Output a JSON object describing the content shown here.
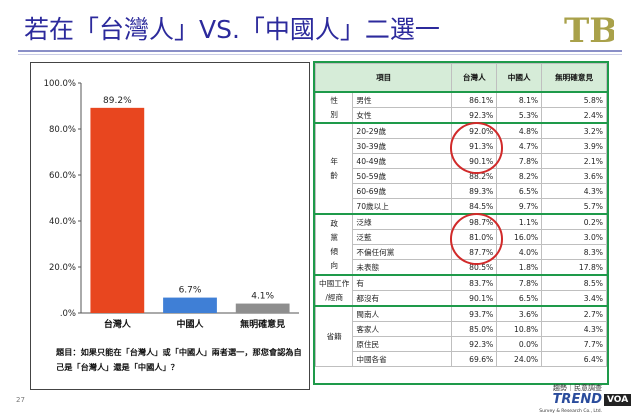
{
  "page": {
    "title": "若在「台灣人」VS.「中國人」二選一",
    "page_number": "27",
    "voa_badge": "VOA"
  },
  "logo": {
    "text": "TBT"
  },
  "question": "題目：如果只能在「台灣人」或「中國人」兩者選一，那您會認為自己是「台灣人」還是「中國人」？",
  "chart_data": {
    "type": "bar",
    "categories": [
      "台灣人",
      "中國人",
      "無明確意見"
    ],
    "values": [
      89.2,
      6.7,
      4.1
    ],
    "value_labels": [
      "89.2%",
      "6.7%",
      "4.1%"
    ],
    "colors": [
      "#e8461f",
      "#3f7fd6",
      "#8e8e8e"
    ],
    "ylim": [
      0,
      100
    ],
    "yticks": [
      0,
      20,
      40,
      60,
      80,
      100
    ],
    "ytick_labels": [
      ".0%",
      "20.0%",
      "40.0%",
      "60.0%",
      "80.0%",
      "100.0%"
    ],
    "title": "",
    "xlabel": "",
    "ylabel": ""
  },
  "table": {
    "headers": [
      "項目",
      "台灣人",
      "中國人",
      "無明確意見"
    ],
    "groups": [
      {
        "label": [
          "性",
          "別"
        ],
        "rows": [
          {
            "sub": "男性",
            "v": [
              "86.1%",
              "8.1%",
              "5.8%"
            ]
          },
          {
            "sub": "女性",
            "v": [
              "92.3%",
              "5.3%",
              "2.4%"
            ]
          }
        ]
      },
      {
        "label": [
          "年",
          "齡"
        ],
        "rows": [
          {
            "sub": "20-29歲",
            "v": [
              "92.0%",
              "4.8%",
              "3.2%"
            ]
          },
          {
            "sub": "30-39歲",
            "v": [
              "91.3%",
              "4.7%",
              "3.9%"
            ]
          },
          {
            "sub": "40-49歲",
            "v": [
              "90.1%",
              "7.8%",
              "2.1%"
            ]
          },
          {
            "sub": "50-59歲",
            "v": [
              "88.2%",
              "8.2%",
              "3.6%"
            ]
          },
          {
            "sub": "60-69歲",
            "v": [
              "89.3%",
              "6.5%",
              "4.3%"
            ]
          },
          {
            "sub": "70歲以上",
            "v": [
              "84.5%",
              "9.7%",
              "5.7%"
            ]
          }
        ]
      },
      {
        "label": [
          "政",
          "黨",
          "傾",
          "向"
        ],
        "rows": [
          {
            "sub": "泛綠",
            "v": [
              "98.7%",
              "1.1%",
              "0.2%"
            ]
          },
          {
            "sub": "泛藍",
            "v": [
              "81.0%",
              "16.0%",
              "3.0%"
            ]
          },
          {
            "sub": "不偏任何黨",
            "v": [
              "87.7%",
              "4.0%",
              "8.3%"
            ]
          },
          {
            "sub": "未表態",
            "v": [
              "80.5%",
              "1.8%",
              "17.8%"
            ]
          }
        ]
      },
      {
        "label": [
          "中國工作",
          "/經商"
        ],
        "rows": [
          {
            "sub": "有",
            "v": [
              "83.7%",
              "7.8%",
              "8.5%"
            ]
          },
          {
            "sub": "都沒有",
            "v": [
              "90.1%",
              "6.5%",
              "3.4%"
            ]
          }
        ]
      },
      {
        "label": [
          "省籍"
        ],
        "rows": [
          {
            "sub": "閩南人",
            "v": [
              "93.7%",
              "3.6%",
              "2.7%"
            ]
          },
          {
            "sub": "客家人",
            "v": [
              "85.0%",
              "10.8%",
              "4.3%"
            ]
          },
          {
            "sub": "原住民",
            "v": [
              "92.3%",
              "0.0%",
              "7.7%"
            ]
          },
          {
            "sub": "中國各省",
            "v": [
              "69.6%",
              "24.0%",
              "6.4%"
            ]
          }
        ]
      }
    ]
  },
  "trend_logo": {
    "caption": "趨勢｜民意調查",
    "brand": "TREND",
    "sub": "Survey & Research Co., Ltd."
  }
}
